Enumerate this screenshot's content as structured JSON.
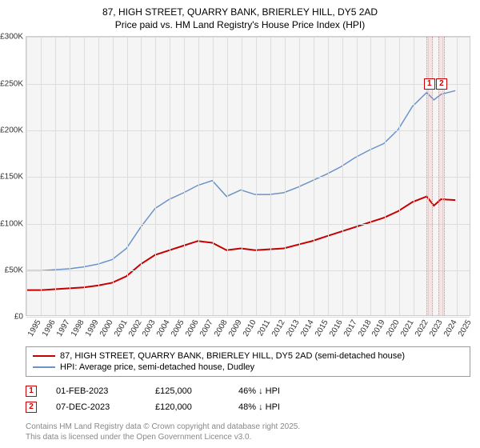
{
  "title_line1": "87, HIGH STREET, QUARRY BANK, BRIERLEY HILL, DY5 2AD",
  "title_line2": "Price paid vs. HM Land Registry's House Price Index (HPI)",
  "chart": {
    "type": "line",
    "background_color": "#f5f5f5",
    "grid_color": "#dddddd",
    "xlim": [
      1995,
      2026
    ],
    "ylim": [
      0,
      300000
    ],
    "ytick_step": 50000,
    "y_ticks": [
      "£0",
      "£50K",
      "£100K",
      "£150K",
      "£200K",
      "£250K",
      "£300K"
    ],
    "x_ticks": [
      1995,
      1996,
      1997,
      1998,
      1999,
      2000,
      2001,
      2002,
      2003,
      2004,
      2005,
      2006,
      2007,
      2008,
      2009,
      2010,
      2011,
      2012,
      2013,
      2014,
      2015,
      2016,
      2017,
      2018,
      2019,
      2020,
      2021,
      2022,
      2023,
      2024,
      2025
    ],
    "series": [
      {
        "name": "price_paid",
        "color": "#c60000",
        "line_width": 2,
        "legend": "87, HIGH STREET, QUARRY BANK, BRIERLEY HILL, DY5 2AD (semi-detached house)",
        "points": [
          [
            1995,
            27000
          ],
          [
            1996,
            27000
          ],
          [
            1997,
            28000
          ],
          [
            1998,
            29000
          ],
          [
            1999,
            30000
          ],
          [
            2000,
            32000
          ],
          [
            2001,
            35000
          ],
          [
            2002,
            42000
          ],
          [
            2003,
            55000
          ],
          [
            2004,
            65000
          ],
          [
            2005,
            70000
          ],
          [
            2006,
            75000
          ],
          [
            2007,
            80000
          ],
          [
            2008,
            78000
          ],
          [
            2009,
            70000
          ],
          [
            2010,
            72000
          ],
          [
            2011,
            70000
          ],
          [
            2012,
            71000
          ],
          [
            2013,
            72000
          ],
          [
            2014,
            76000
          ],
          [
            2015,
            80000
          ],
          [
            2016,
            85000
          ],
          [
            2017,
            90000
          ],
          [
            2018,
            95000
          ],
          [
            2019,
            100000
          ],
          [
            2020,
            105000
          ],
          [
            2021,
            112000
          ],
          [
            2022,
            122000
          ],
          [
            2023,
            128000
          ],
          [
            2023.5,
            118000
          ],
          [
            2024,
            125000
          ],
          [
            2025,
            124000
          ]
        ]
      },
      {
        "name": "hpi",
        "color": "#6b93c8",
        "line_width": 1.5,
        "legend": "HPI: Average price, semi-detached house, Dudley",
        "points": [
          [
            1995,
            48000
          ],
          [
            1996,
            48000
          ],
          [
            1997,
            49000
          ],
          [
            1998,
            50000
          ],
          [
            1999,
            52000
          ],
          [
            2000,
            55000
          ],
          [
            2001,
            60000
          ],
          [
            2002,
            72000
          ],
          [
            2003,
            95000
          ],
          [
            2004,
            115000
          ],
          [
            2005,
            125000
          ],
          [
            2006,
            132000
          ],
          [
            2007,
            140000
          ],
          [
            2008,
            145000
          ],
          [
            2009,
            128000
          ],
          [
            2010,
            135000
          ],
          [
            2011,
            130000
          ],
          [
            2012,
            130000
          ],
          [
            2013,
            132000
          ],
          [
            2014,
            138000
          ],
          [
            2015,
            145000
          ],
          [
            2016,
            152000
          ],
          [
            2017,
            160000
          ],
          [
            2018,
            170000
          ],
          [
            2019,
            178000
          ],
          [
            2020,
            185000
          ],
          [
            2021,
            200000
          ],
          [
            2022,
            225000
          ],
          [
            2023,
            240000
          ],
          [
            2023.5,
            232000
          ],
          [
            2024,
            238000
          ],
          [
            2025,
            242000
          ]
        ]
      }
    ],
    "markers": [
      {
        "id": "1",
        "x": 2023.08,
        "label_y": 250000
      },
      {
        "id": "2",
        "x": 2023.93,
        "label_y": 250000
      }
    ]
  },
  "transactions": [
    {
      "id": "1",
      "date": "01-FEB-2023",
      "price": "£125,000",
      "pct": "46% ↓ HPI"
    },
    {
      "id": "2",
      "date": "07-DEC-2023",
      "price": "£120,000",
      "pct": "48% ↓ HPI"
    }
  ],
  "footer_line1": "Contains HM Land Registry data © Crown copyright and database right 2025.",
  "footer_line2": "This data is licensed under the Open Government Licence v3.0."
}
